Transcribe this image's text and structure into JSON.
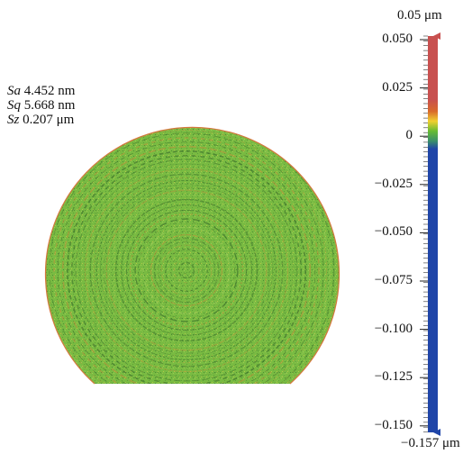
{
  "stats": [
    {
      "symbol": "Sa",
      "value": "4.452 nm"
    },
    {
      "symbol": "Sq",
      "value": "5.668 nm"
    },
    {
      "symbol": "Sz",
      "value": "0.207 μm"
    }
  ],
  "colorbar": {
    "max_label": "0.05 μm",
    "min_label": "−0.157 μm",
    "ticks": [
      "0.050",
      "0.025",
      "0",
      "−0.025",
      "−0.050",
      "−0.075",
      "−0.100",
      "−0.125",
      "−0.150"
    ],
    "colors": {
      "top": "#c8504f",
      "mid": "#66bb33",
      "bottom": "#1f45a8"
    }
  },
  "surface": {
    "base_color": "#79bb42",
    "ring_dark": "#3a6d2a",
    "ring_warm": "#c88a3a"
  }
}
